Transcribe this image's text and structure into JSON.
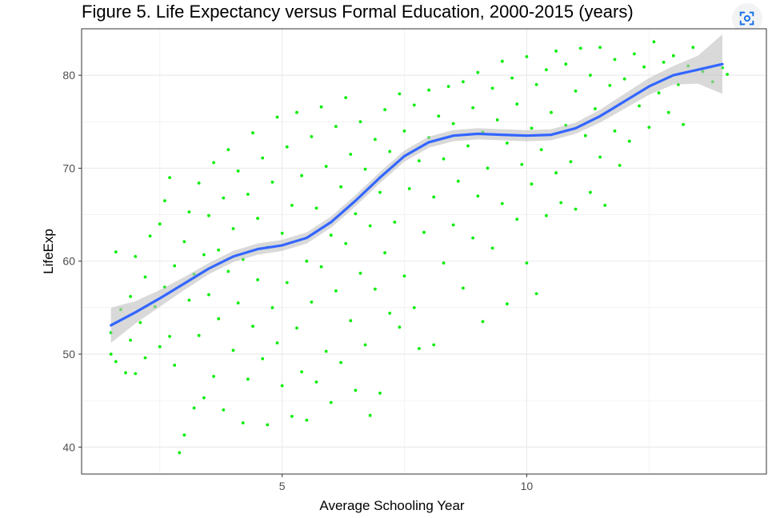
{
  "title": "Figure 5. Life Expectancy versus Formal Education, 2000-2015 (years)",
  "toolbar": {
    "lens_icon": "lens-scan-icon"
  },
  "colors": {
    "points": "#00ee00",
    "smooth_line": "#3366ff",
    "confidence_band": "#bfbfbf",
    "grid": "#ebebeb",
    "panel_border": "#333333"
  },
  "chart_data": {
    "type": "scatter",
    "title": "Figure 5. Life Expectancy versus Formal Education, 2000-2015 (years)",
    "xlabel": "Average Schooling Year",
    "ylabel": "LifeExp",
    "xlim": [
      0.9,
      14.9
    ],
    "ylim": [
      37.1,
      85.0
    ],
    "x_ticks": [
      5,
      10
    ],
    "y_ticks": [
      40,
      50,
      60,
      70,
      80
    ],
    "grid": true,
    "legend": "none",
    "smooth": {
      "method": "loess",
      "x": [
        1.5,
        2.0,
        2.5,
        3.0,
        3.5,
        4.0,
        4.5,
        5.0,
        5.5,
        6.0,
        6.5,
        7.0,
        7.5,
        8.0,
        8.5,
        9.0,
        9.5,
        10.0,
        10.5,
        11.0,
        11.5,
        12.0,
        12.5,
        13.0,
        13.5,
        14.0
      ],
      "y": [
        53.1,
        54.5,
        56.0,
        57.6,
        59.2,
        60.5,
        61.3,
        61.7,
        62.5,
        64.2,
        66.5,
        69.0,
        71.3,
        72.8,
        73.5,
        73.7,
        73.6,
        73.5,
        73.6,
        74.3,
        75.6,
        77.2,
        78.8,
        80.0,
        80.6,
        81.2
      ],
      "ci_halfwidth": [
        1.9,
        1.2,
        0.9,
        0.7,
        0.6,
        0.6,
        0.6,
        0.6,
        0.6,
        0.6,
        0.6,
        0.6,
        0.6,
        0.6,
        0.6,
        0.6,
        0.6,
        0.6,
        0.6,
        0.6,
        0.7,
        0.8,
        0.9,
        1.0,
        1.5,
        3.2
      ]
    },
    "points": [
      [
        1.5,
        50.0
      ],
      [
        1.5,
        52.3
      ],
      [
        1.6,
        61.0
      ],
      [
        1.6,
        49.2
      ],
      [
        1.7,
        54.8
      ],
      [
        1.8,
        48.0
      ],
      [
        1.9,
        51.5
      ],
      [
        1.9,
        56.2
      ],
      [
        2.0,
        47.9
      ],
      [
        2.0,
        60.5
      ],
      [
        2.1,
        53.4
      ],
      [
        2.2,
        58.3
      ],
      [
        2.2,
        49.6
      ],
      [
        2.3,
        62.7
      ],
      [
        2.4,
        55.1
      ],
      [
        2.5,
        50.8
      ],
      [
        2.5,
        64.0
      ],
      [
        2.6,
        57.2
      ],
      [
        2.6,
        66.5
      ],
      [
        2.7,
        51.9
      ],
      [
        2.7,
        69.0
      ],
      [
        2.8,
        48.8
      ],
      [
        2.8,
        59.5
      ],
      [
        2.9,
        39.4
      ],
      [
        3.0,
        41.3
      ],
      [
        3.0,
        62.1
      ],
      [
        3.1,
        55.8
      ],
      [
        3.1,
        65.3
      ],
      [
        3.2,
        44.2
      ],
      [
        3.2,
        58.6
      ],
      [
        3.3,
        52.0
      ],
      [
        3.3,
        68.4
      ],
      [
        3.4,
        45.3
      ],
      [
        3.4,
        60.7
      ],
      [
        3.5,
        56.4
      ],
      [
        3.5,
        64.9
      ],
      [
        3.6,
        47.6
      ],
      [
        3.6,
        70.6
      ],
      [
        3.7,
        53.8
      ],
      [
        3.7,
        61.2
      ],
      [
        3.8,
        44.0
      ],
      [
        3.8,
        66.8
      ],
      [
        3.9,
        58.9
      ],
      [
        3.9,
        72.0
      ],
      [
        4.0,
        50.4
      ],
      [
        4.0,
        63.5
      ],
      [
        4.1,
        55.5
      ],
      [
        4.1,
        69.7
      ],
      [
        4.2,
        42.6
      ],
      [
        4.2,
        60.2
      ],
      [
        4.3,
        47.3
      ],
      [
        4.3,
        67.2
      ],
      [
        4.4,
        53.0
      ],
      [
        4.4,
        73.8
      ],
      [
        4.5,
        58.0
      ],
      [
        4.5,
        64.6
      ],
      [
        4.6,
        49.5
      ],
      [
        4.6,
        71.1
      ],
      [
        4.7,
        42.4
      ],
      [
        4.7,
        61.5
      ],
      [
        4.8,
        55.0
      ],
      [
        4.8,
        68.5
      ],
      [
        4.9,
        51.2
      ],
      [
        4.9,
        75.5
      ],
      [
        5.0,
        46.6
      ],
      [
        5.0,
        63.0
      ],
      [
        5.1,
        57.7
      ],
      [
        5.1,
        72.3
      ],
      [
        5.2,
        43.3
      ],
      [
        5.2,
        66.0
      ],
      [
        5.3,
        52.8
      ],
      [
        5.3,
        76.0
      ],
      [
        5.4,
        48.1
      ],
      [
        5.4,
        69.2
      ],
      [
        5.5,
        42.9
      ],
      [
        5.5,
        60.0
      ],
      [
        5.6,
        55.6
      ],
      [
        5.6,
        73.4
      ],
      [
        5.7,
        47.0
      ],
      [
        5.7,
        65.7
      ],
      [
        5.8,
        59.4
      ],
      [
        5.8,
        76.6
      ],
      [
        5.9,
        50.3
      ],
      [
        5.9,
        70.2
      ],
      [
        6.0,
        44.8
      ],
      [
        6.0,
        62.8
      ],
      [
        6.1,
        56.8
      ],
      [
        6.1,
        74.5
      ],
      [
        6.2,
        49.1
      ],
      [
        6.2,
        68.0
      ],
      [
        6.3,
        61.9
      ],
      [
        6.3,
        77.6
      ],
      [
        6.4,
        53.6
      ],
      [
        6.4,
        71.5
      ],
      [
        6.5,
        46.1
      ],
      [
        6.5,
        65.1
      ],
      [
        6.6,
        58.7
      ],
      [
        6.6,
        75.0
      ],
      [
        6.7,
        51.0
      ],
      [
        6.7,
        69.9
      ],
      [
        6.8,
        43.4
      ],
      [
        6.8,
        63.8
      ],
      [
        6.9,
        57.0
      ],
      [
        6.9,
        73.1
      ],
      [
        7.0,
        45.8
      ],
      [
        7.0,
        67.4
      ],
      [
        7.1,
        60.9
      ],
      [
        7.1,
        76.3
      ],
      [
        7.2,
        54.4
      ],
      [
        7.2,
        71.8
      ],
      [
        7.3,
        64.2
      ],
      [
        7.4,
        52.9
      ],
      [
        7.4,
        78.0
      ],
      [
        7.5,
        58.4
      ],
      [
        7.5,
        74.0
      ],
      [
        7.6,
        67.8
      ],
      [
        7.7,
        55.0
      ],
      [
        7.7,
        76.8
      ],
      [
        7.8,
        50.6
      ],
      [
        7.8,
        70.8
      ],
      [
        7.9,
        63.1
      ],
      [
        8.0,
        73.3
      ],
      [
        8.0,
        78.4
      ],
      [
        8.1,
        51.0
      ],
      [
        8.1,
        66.9
      ],
      [
        8.2,
        75.6
      ],
      [
        8.3,
        59.8
      ],
      [
        8.3,
        71.0
      ],
      [
        8.4,
        78.8
      ],
      [
        8.5,
        63.9
      ],
      [
        8.5,
        74.8
      ],
      [
        8.6,
        68.6
      ],
      [
        8.7,
        57.1
      ],
      [
        8.7,
        79.3
      ],
      [
        8.8,
        72.4
      ],
      [
        8.9,
        62.5
      ],
      [
        8.9,
        76.5
      ],
      [
        9.0,
        67.0
      ],
      [
        9.0,
        80.3
      ],
      [
        9.1,
        53.5
      ],
      [
        9.1,
        73.9
      ],
      [
        9.2,
        70.0
      ],
      [
        9.3,
        61.4
      ],
      [
        9.3,
        78.6
      ],
      [
        9.4,
        75.2
      ],
      [
        9.5,
        66.2
      ],
      [
        9.5,
        81.5
      ],
      [
        9.6,
        55.4
      ],
      [
        9.6,
        72.7
      ],
      [
        9.7,
        79.7
      ],
      [
        9.8,
        64.5
      ],
      [
        9.8,
        76.9
      ],
      [
        9.9,
        70.4
      ],
      [
        10.0,
        59.8
      ],
      [
        10.0,
        82.0
      ],
      [
        10.1,
        74.3
      ],
      [
        10.1,
        68.3
      ],
      [
        10.2,
        56.5
      ],
      [
        10.2,
        79.0
      ],
      [
        10.3,
        72.0
      ],
      [
        10.4,
        64.9
      ],
      [
        10.4,
        80.6
      ],
      [
        10.5,
        76.0
      ],
      [
        10.6,
        69.5
      ],
      [
        10.6,
        82.6
      ],
      [
        10.7,
        66.3
      ],
      [
        10.8,
        74.6
      ],
      [
        10.8,
        81.2
      ],
      [
        10.9,
        70.7
      ],
      [
        11.0,
        65.6
      ],
      [
        11.0,
        78.3
      ],
      [
        11.1,
        82.9
      ],
      [
        11.2,
        73.5
      ],
      [
        11.3,
        67.4
      ],
      [
        11.3,
        80.0
      ],
      [
        11.4,
        76.4
      ],
      [
        11.5,
        71.2
      ],
      [
        11.5,
        83.0
      ],
      [
        11.6,
        66.0
      ],
      [
        11.7,
        78.9
      ],
      [
        11.8,
        74.0
      ],
      [
        11.8,
        81.7
      ],
      [
        11.9,
        70.3
      ],
      [
        12.0,
        79.6
      ],
      [
        12.1,
        72.9
      ],
      [
        12.2,
        82.3
      ],
      [
        12.3,
        76.7
      ],
      [
        12.4,
        80.9
      ],
      [
        12.5,
        74.4
      ],
      [
        12.6,
        83.6
      ],
      [
        12.7,
        78.1
      ],
      [
        12.8,
        81.4
      ],
      [
        12.9,
        76.0
      ],
      [
        13.0,
        82.1
      ],
      [
        13.1,
        79.0
      ],
      [
        13.2,
        74.7
      ],
      [
        13.3,
        81.0
      ],
      [
        13.4,
        83.0
      ],
      [
        13.6,
        80.4
      ],
      [
        13.8,
        79.3
      ],
      [
        14.0,
        80.8
      ],
      [
        14.1,
        80.1
      ]
    ]
  }
}
